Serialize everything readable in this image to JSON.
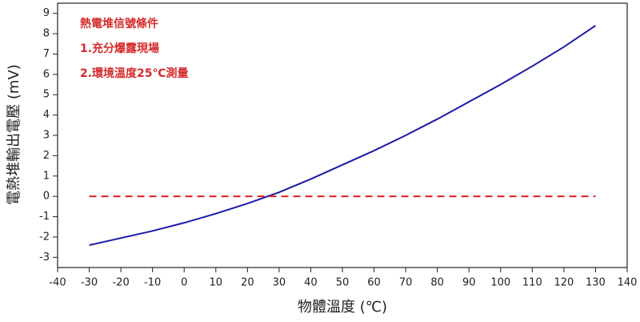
{
  "chart_data": {
    "type": "line",
    "xlabel": "物體溫度 (℃)",
    "ylabel": "電熱堆輸出電壓 (mV)",
    "annotations": [
      "熱電堆信號條件",
      "1.充分爆露現場",
      "2.環境溫度25℃測量"
    ],
    "xlim": [
      -40,
      140
    ],
    "xticks": [
      -40,
      -30,
      -20,
      -10,
      0,
      10,
      20,
      30,
      40,
      50,
      60,
      70,
      80,
      90,
      100,
      110,
      120,
      130,
      140
    ],
    "ylim": [
      -3.5,
      9.5
    ],
    "yticks": [
      -3,
      -2,
      -1,
      0,
      1,
      2,
      3,
      4,
      5,
      6,
      7,
      8,
      9
    ],
    "series": [
      {
        "color": "#1a1aa8",
        "dash": false,
        "x": [
          -30,
          -20,
          -10,
          0,
          10,
          20,
          30,
          40,
          50,
          60,
          70,
          80,
          90,
          100,
          110,
          120,
          130
        ],
        "values": [
          -2.4,
          -2.05,
          -1.7,
          -1.3,
          -0.85,
          -0.35,
          0.2,
          0.85,
          1.55,
          2.25,
          3.0,
          3.8,
          4.65,
          5.5,
          6.4,
          7.35,
          8.4
        ]
      },
      {
        "color": "#e02020",
        "dash": true,
        "x": [
          -30,
          130
        ],
        "values": [
          0,
          0
        ]
      }
    ]
  }
}
